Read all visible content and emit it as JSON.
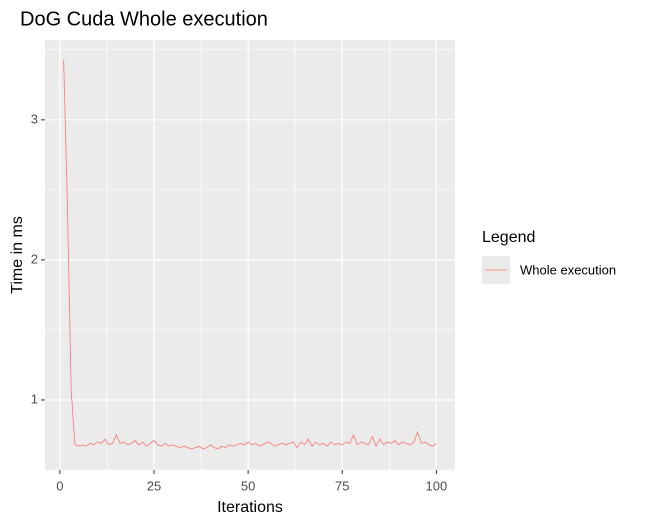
{
  "chart_data": {
    "type": "line",
    "title": "DoG Cuda Whole execution",
    "x_label": "Iterations",
    "y_label": "Time in ms",
    "legend_title": "Legend",
    "legend_position": "right",
    "grid": true,
    "minor_grid": true,
    "x": [
      1,
      2,
      3,
      4,
      5,
      6,
      7,
      8,
      9,
      10,
      11,
      12,
      13,
      14,
      15,
      16,
      17,
      18,
      19,
      20,
      21,
      22,
      23,
      24,
      25,
      26,
      27,
      28,
      29,
      30,
      31,
      32,
      33,
      34,
      35,
      36,
      37,
      38,
      39,
      40,
      41,
      42,
      43,
      44,
      45,
      46,
      47,
      48,
      49,
      50,
      51,
      52,
      53,
      54,
      55,
      56,
      57,
      58,
      59,
      60,
      61,
      62,
      63,
      64,
      65,
      66,
      67,
      68,
      69,
      70,
      71,
      72,
      73,
      74,
      75,
      76,
      77,
      78,
      79,
      80,
      81,
      82,
      83,
      84,
      85,
      86,
      87,
      88,
      89,
      90,
      91,
      92,
      93,
      94,
      95,
      96,
      97,
      98,
      99,
      100
    ],
    "series": [
      {
        "name": "Whole execution",
        "color": "#F8766D",
        "values": [
          3.43,
          2.4,
          1.07,
          0.68,
          0.67,
          0.68,
          0.67,
          0.69,
          0.68,
          0.7,
          0.69,
          0.72,
          0.68,
          0.69,
          0.75,
          0.69,
          0.7,
          0.68,
          0.69,
          0.71,
          0.68,
          0.7,
          0.67,
          0.69,
          0.71,
          0.68,
          0.67,
          0.69,
          0.67,
          0.68,
          0.67,
          0.66,
          0.67,
          0.66,
          0.65,
          0.66,
          0.67,
          0.65,
          0.66,
          0.68,
          0.66,
          0.65,
          0.67,
          0.66,
          0.68,
          0.67,
          0.68,
          0.69,
          0.68,
          0.7,
          0.68,
          0.69,
          0.67,
          0.68,
          0.7,
          0.69,
          0.67,
          0.68,
          0.69,
          0.68,
          0.69,
          0.7,
          0.66,
          0.7,
          0.68,
          0.72,
          0.67,
          0.7,
          0.68,
          0.69,
          0.67,
          0.7,
          0.68,
          0.69,
          0.68,
          0.7,
          0.69,
          0.75,
          0.68,
          0.7,
          0.69,
          0.68,
          0.74,
          0.67,
          0.72,
          0.68,
          0.7,
          0.69,
          0.71,
          0.68,
          0.7,
          0.69,
          0.68,
          0.7,
          0.77,
          0.69,
          0.7,
          0.68,
          0.67,
          0.69
        ]
      }
    ],
    "xlim": [
      -3.95,
      104.95
    ],
    "ylim": [
      0.5,
      3.57
    ],
    "xticks": [
      0,
      25,
      50,
      75,
      100
    ],
    "yticks": [
      1,
      2,
      3
    ]
  }
}
